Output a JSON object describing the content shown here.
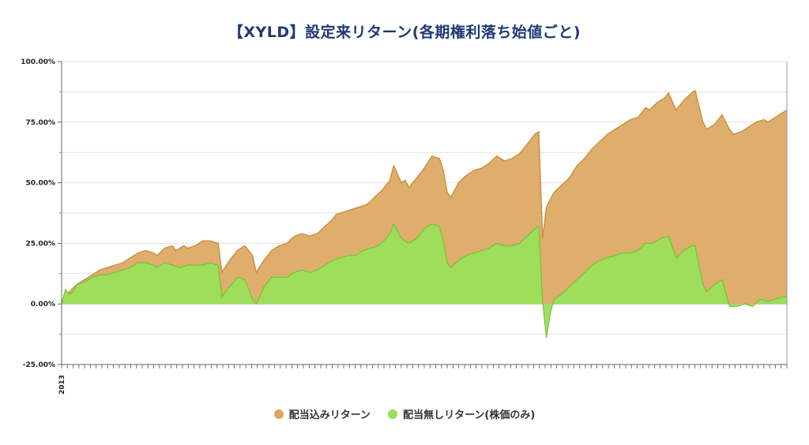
{
  "title": "【XYLD】設定来リターン(各期権利落ち始値ごと)",
  "colors": {
    "total": "#dca55c",
    "total_line": "#c88f3c",
    "price": "#9ae05a",
    "price_line": "#73c23a",
    "title": "#1f3a73"
  },
  "chart_data": {
    "type": "area",
    "title": "【XYLD】設定来リターン(各期権利落ち始値ごと)",
    "xlabel": "",
    "ylabel": "",
    "x_tick_labels": [
      "2013"
    ],
    "y_ticks": [
      "-25.00%",
      "0.00%",
      "25.00%",
      "50.00%",
      "75.00%",
      "100.00%"
    ],
    "ylim": [
      -25,
      100
    ],
    "grid": true,
    "legend_position": "bottom",
    "periods": 126,
    "series": [
      {
        "name": "配当込みリターン",
        "points": [
          [
            0,
            0
          ],
          [
            2,
            5
          ],
          [
            4,
            8
          ],
          [
            6,
            10
          ],
          [
            8,
            12
          ],
          [
            10,
            14
          ],
          [
            12,
            15
          ],
          [
            14,
            16
          ],
          [
            16,
            17
          ],
          [
            18,
            19
          ],
          [
            20,
            21
          ],
          [
            22,
            22
          ],
          [
            24,
            21
          ],
          [
            25,
            20
          ],
          [
            27,
            23
          ],
          [
            29,
            24
          ],
          [
            30,
            22
          ],
          [
            32,
            24
          ],
          [
            33,
            23
          ],
          [
            35,
            24
          ],
          [
            37,
            26
          ],
          [
            39,
            26
          ],
          [
            41,
            25
          ],
          [
            42,
            13
          ],
          [
            44,
            18
          ],
          [
            46,
            22
          ],
          [
            48,
            24
          ],
          [
            50,
            20
          ],
          [
            51,
            13
          ],
          [
            53,
            18
          ],
          [
            55,
            22
          ],
          [
            57,
            24
          ],
          [
            59,
            25
          ],
          [
            61,
            28
          ],
          [
            63,
            29
          ],
          [
            65,
            28
          ],
          [
            67,
            29
          ],
          [
            69,
            32
          ],
          [
            71,
            35
          ],
          [
            72,
            37
          ],
          [
            74,
            38
          ],
          [
            76,
            39
          ],
          [
            78,
            40
          ],
          [
            80,
            41
          ],
          [
            82,
            44
          ],
          [
            84,
            47
          ],
          [
            86,
            51
          ],
          [
            87,
            57
          ],
          [
            89,
            50
          ],
          [
            90,
            51
          ],
          [
            91,
            48
          ],
          [
            93,
            52
          ],
          [
            95,
            56
          ],
          [
            97,
            61
          ],
          [
            99,
            60
          ],
          [
            100,
            55
          ],
          [
            101,
            46
          ],
          [
            102,
            44
          ],
          [
            104,
            50
          ],
          [
            106,
            53
          ],
          [
            108,
            55
          ],
          [
            110,
            56
          ],
          [
            112,
            58
          ],
          [
            114,
            61
          ],
          [
            116,
            59
          ],
          [
            118,
            60
          ],
          [
            120,
            62
          ],
          [
            122,
            66
          ],
          [
            124,
            70
          ],
          [
            125,
            71
          ],
          [
            126,
            27
          ],
          [
            127,
            40
          ],
          [
            129,
            46
          ],
          [
            131,
            49
          ],
          [
            133,
            52
          ],
          [
            135,
            57
          ],
          [
            137,
            60
          ],
          [
            139,
            64
          ],
          [
            141,
            67
          ],
          [
            143,
            70
          ],
          [
            145,
            72
          ],
          [
            147,
            74
          ],
          [
            149,
            76
          ],
          [
            151,
            77
          ],
          [
            153,
            81
          ],
          [
            154,
            80
          ],
          [
            156,
            83
          ],
          [
            158,
            85
          ],
          [
            159,
            87
          ],
          [
            161,
            80
          ],
          [
            163,
            84
          ],
          [
            165,
            87
          ],
          [
            166,
            88
          ],
          [
            168,
            75
          ],
          [
            169,
            72
          ],
          [
            171,
            74
          ],
          [
            173,
            78
          ],
          [
            175,
            72
          ],
          [
            176,
            70
          ],
          [
            178,
            71
          ],
          [
            180,
            73
          ],
          [
            182,
            75
          ],
          [
            184,
            76
          ],
          [
            185,
            75
          ],
          [
            187,
            77
          ],
          [
            189,
            79
          ],
          [
            190,
            80
          ]
        ]
      },
      {
        "name": "配当無しリターン(株価のみ)",
        "points": [
          [
            0,
            0
          ],
          [
            1,
            6
          ],
          [
            2,
            4
          ],
          [
            3,
            5
          ],
          [
            4,
            8
          ],
          [
            6,
            9
          ],
          [
            8,
            11
          ],
          [
            10,
            12
          ],
          [
            12,
            12
          ],
          [
            14,
            13
          ],
          [
            16,
            14
          ],
          [
            18,
            15
          ],
          [
            20,
            17
          ],
          [
            22,
            17
          ],
          [
            24,
            16
          ],
          [
            25,
            15
          ],
          [
            27,
            17
          ],
          [
            29,
            16
          ],
          [
            31,
            15
          ],
          [
            33,
            16
          ],
          [
            35,
            16
          ],
          [
            37,
            16
          ],
          [
            39,
            17
          ],
          [
            41,
            16
          ],
          [
            42,
            3
          ],
          [
            44,
            7
          ],
          [
            46,
            11
          ],
          [
            48,
            10
          ],
          [
            50,
            2
          ],
          [
            51,
            0
          ],
          [
            53,
            7
          ],
          [
            55,
            11
          ],
          [
            57,
            11
          ],
          [
            59,
            11
          ],
          [
            61,
            13
          ],
          [
            63,
            14
          ],
          [
            65,
            13
          ],
          [
            67,
            14
          ],
          [
            69,
            16
          ],
          [
            71,
            18
          ],
          [
            73,
            19
          ],
          [
            75,
            20
          ],
          [
            77,
            20
          ],
          [
            79,
            22
          ],
          [
            81,
            23
          ],
          [
            83,
            24
          ],
          [
            85,
            27
          ],
          [
            86,
            29
          ],
          [
            87,
            33
          ],
          [
            89,
            27
          ],
          [
            91,
            25
          ],
          [
            93,
            27
          ],
          [
            95,
            31
          ],
          [
            97,
            33
          ],
          [
            99,
            32
          ],
          [
            100,
            26
          ],
          [
            101,
            17
          ],
          [
            102,
            15
          ],
          [
            104,
            18
          ],
          [
            106,
            20
          ],
          [
            108,
            21
          ],
          [
            110,
            22
          ],
          [
            112,
            23
          ],
          [
            114,
            25
          ],
          [
            116,
            24
          ],
          [
            118,
            24
          ],
          [
            120,
            25
          ],
          [
            122,
            28
          ],
          [
            124,
            31
          ],
          [
            125,
            32
          ],
          [
            126,
            1
          ],
          [
            127,
            -14
          ],
          [
            128,
            -4
          ],
          [
            129,
            2
          ],
          [
            131,
            4
          ],
          [
            133,
            7
          ],
          [
            135,
            10
          ],
          [
            137,
            13
          ],
          [
            139,
            16
          ],
          [
            141,
            18
          ],
          [
            143,
            19
          ],
          [
            145,
            20
          ],
          [
            147,
            21
          ],
          [
            149,
            21
          ],
          [
            151,
            22
          ],
          [
            153,
            25
          ],
          [
            155,
            25
          ],
          [
            157,
            27
          ],
          [
            159,
            28
          ],
          [
            161,
            19
          ],
          [
            163,
            22
          ],
          [
            165,
            24
          ],
          [
            166,
            24
          ],
          [
            168,
            8
          ],
          [
            169,
            5
          ],
          [
            171,
            8
          ],
          [
            173,
            10
          ],
          [
            175,
            -1
          ],
          [
            177,
            -1
          ],
          [
            179,
            0
          ],
          [
            181,
            -1
          ],
          [
            183,
            2
          ],
          [
            185,
            1
          ],
          [
            187,
            2
          ],
          [
            189,
            3
          ],
          [
            190,
            3
          ]
        ]
      }
    ]
  }
}
